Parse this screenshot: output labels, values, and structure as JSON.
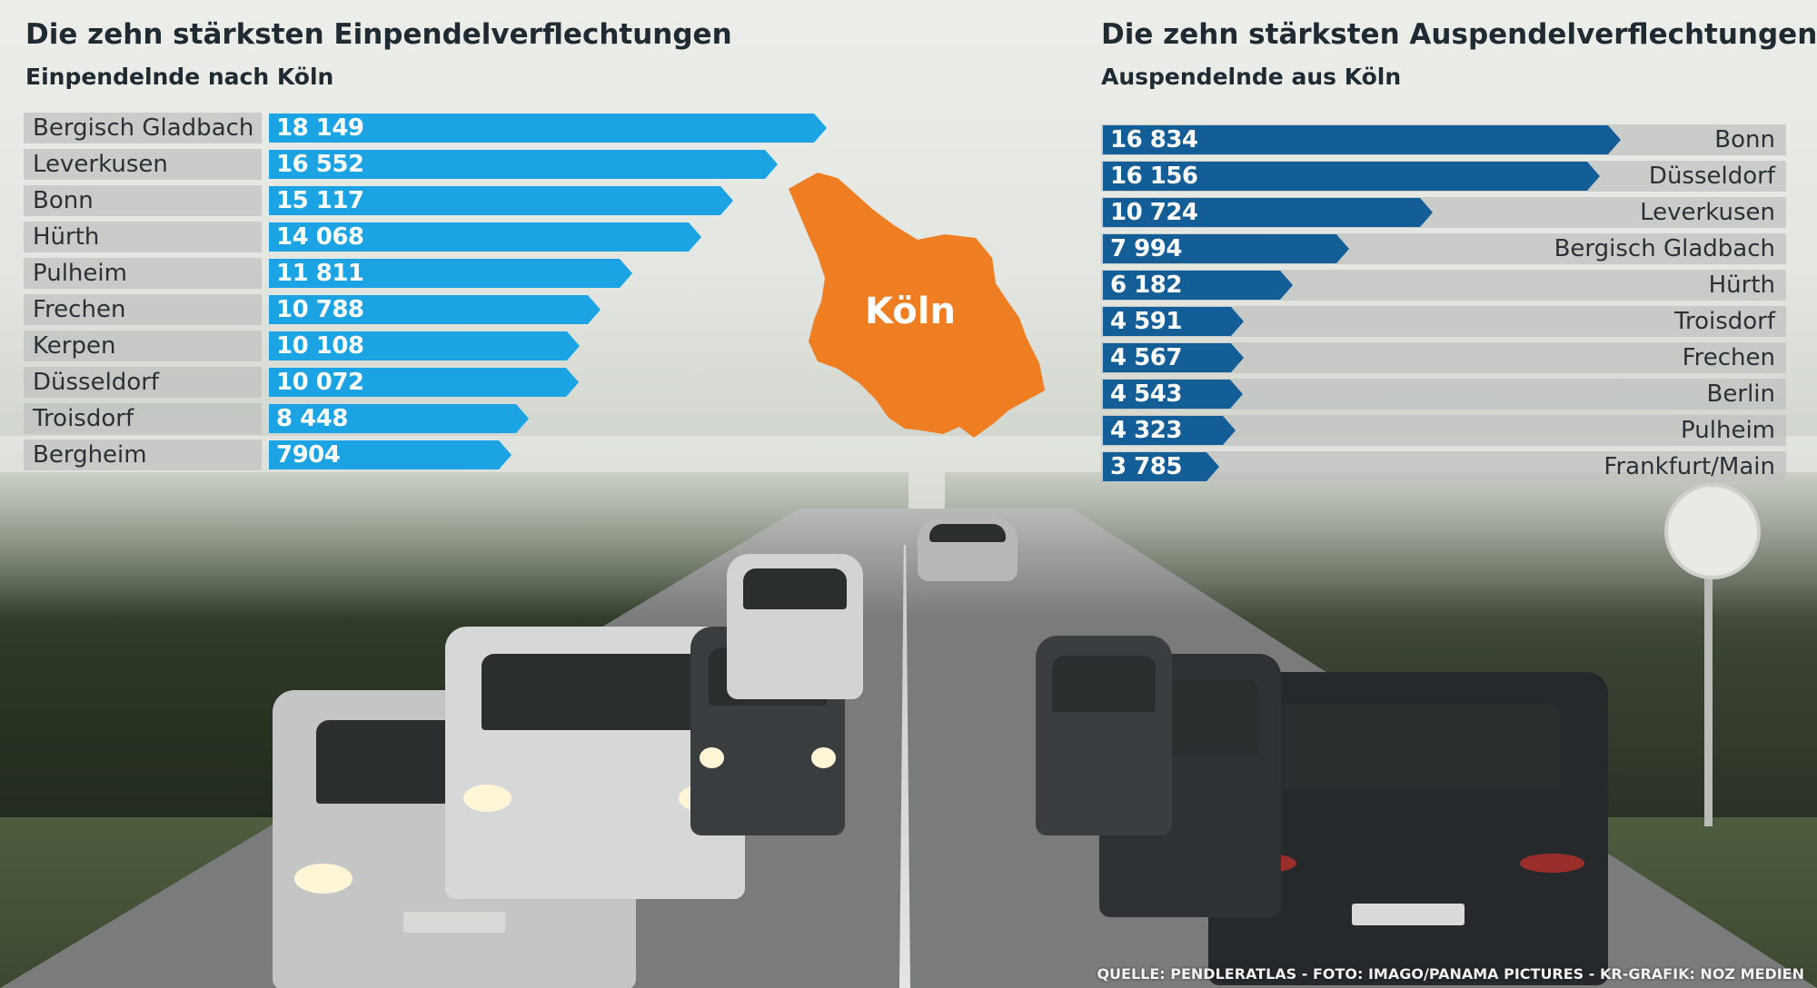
{
  "colors": {
    "inbound_bar": "#1ba3e3",
    "outbound_bar": "#145e98",
    "map_fill": "#ef7d22",
    "row_background": "#bec0be"
  },
  "map": {
    "label": "Köln"
  },
  "source": "QUELLE: PENDLERATLAS - FOTO: IMAGO/PANAMA PICTURES - KR-GRAFIK: NOZ MEDIEN",
  "chart_data": [
    {
      "type": "bar",
      "orientation": "horizontal",
      "title": "Die zehn stärksten Einpendelverflechtungen",
      "subtitle": "Einpendelnde nach Köln",
      "categories": [
        "Bergisch Gladbach",
        "Leverkusen",
        "Bonn",
        "Hürth",
        "Pulheim",
        "Frechen",
        "Kerpen",
        "Düsseldorf",
        "Troisdorf",
        "Bergheim"
      ],
      "values": [
        18149,
        16552,
        15117,
        14068,
        11811,
        10788,
        10108,
        10072,
        8448,
        7904
      ],
      "value_labels": [
        "18 149",
        "16 552",
        "15 117",
        "14 068",
        "11 811",
        "10 788",
        "10 108",
        "10 072",
        "8 448",
        "7904"
      ],
      "grid": false
    },
    {
      "type": "bar",
      "orientation": "horizontal",
      "title": "Die zehn stärksten Auspendelverflechtungen",
      "subtitle": "Auspendelnde aus Köln",
      "categories": [
        "Bonn",
        "Düsseldorf",
        "Leverkusen",
        "Bergisch Gladbach",
        "Hürth",
        "Troisdorf",
        "Frechen",
        "Berlin",
        "Pulheim",
        "Frankfurt/Main"
      ],
      "values": [
        16834,
        16156,
        10724,
        7994,
        6182,
        4591,
        4567,
        4543,
        4323,
        3785
      ],
      "value_labels": [
        "16 834",
        "16 156",
        "10 724",
        "7 994",
        "6 182",
        "4 591",
        "4 567",
        "4 543",
        "4 323",
        "3 785"
      ],
      "grid": false
    }
  ]
}
